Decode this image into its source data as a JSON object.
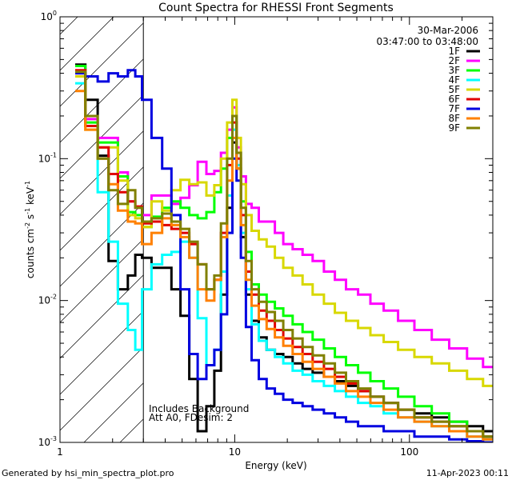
{
  "chart_data": {
    "type": "line",
    "title": "Count Spectra for RHESSI Front Segments",
    "xlabel": "Energy (keV)",
    "ylabel_parts": [
      "counts cm",
      "-2",
      " s",
      "-1",
      " keV",
      "-1"
    ],
    "xscale": "log",
    "yscale": "log",
    "xlim": [
      1.0,
      300.0
    ],
    "ylim": [
      0.001,
      1.0
    ],
    "x_ticks": [
      {
        "value": 1,
        "label": "1"
      },
      {
        "value": 10,
        "label": "10"
      },
      {
        "value": 100,
        "label": "100"
      }
    ],
    "y_ticks": [
      {
        "value": 0.001,
        "base": "10",
        "exp": "-3"
      },
      {
        "value": 0.01,
        "base": "10",
        "exp": "-2"
      },
      {
        "value": 0.1,
        "base": "10",
        "exp": "-1"
      },
      {
        "value": 1,
        "base": "10",
        "exp": "0"
      }
    ],
    "hatched_region_keV": [
      1.0,
      3.0
    ],
    "info": {
      "date": "30-Mar-2006",
      "time_range": "03:47:00 to 03:48:00"
    },
    "note_lines": [
      "Includes Background",
      "Att A0, FDesim: 2"
    ],
    "legend_location": "top-right",
    "series": [
      {
        "name": "1F",
        "color": "#000000",
        "x": [
          1.3,
          1.5,
          1.8,
          2.0,
          2.3,
          2.6,
          2.8,
          3.1,
          3.6,
          4.1,
          4.6,
          5.2,
          5.8,
          6.5,
          7.3,
          8.0,
          8.7,
          9.4,
          10.0,
          10.5,
          11.2,
          12.0,
          13.0,
          14.5,
          16.0,
          18.0,
          20.0,
          23.0,
          26.0,
          30.0,
          35.0,
          40.0,
          47.0,
          55.0,
          65.0,
          78.0,
          95.0,
          120.0,
          150.0,
          190.0,
          240.0,
          290.0
        ],
        "y": [
          0.46,
          0.26,
          0.105,
          0.019,
          0.012,
          0.015,
          0.021,
          0.02,
          0.017,
          0.017,
          0.012,
          0.0078,
          0.0028,
          0.0012,
          0.0018,
          0.0032,
          0.011,
          0.045,
          0.13,
          0.085,
          0.028,
          0.011,
          0.0072,
          0.0055,
          0.0045,
          0.0042,
          0.004,
          0.0036,
          0.0033,
          0.0031,
          0.0029,
          0.0027,
          0.0025,
          0.0023,
          0.0021,
          0.0019,
          0.0017,
          0.0016,
          0.0015,
          0.0014,
          0.0013,
          0.0012
        ]
      },
      {
        "name": "2F",
        "color": "#ff00ff",
        "x": [
          1.3,
          1.5,
          1.8,
          2.0,
          2.3,
          2.6,
          2.8,
          3.1,
          3.6,
          4.1,
          4.6,
          5.2,
          5.8,
          6.5,
          7.3,
          8.0,
          8.7,
          9.4,
          10.0,
          10.5,
          11.2,
          12.0,
          13.0,
          14.5,
          16.0,
          18.0,
          20.0,
          23.0,
          26.0,
          30.0,
          35.0,
          40.0,
          47.0,
          55.0,
          65.0,
          78.0,
          95.0,
          120.0,
          150.0,
          190.0,
          240.0,
          290.0
        ],
        "y": [
          0.4,
          0.19,
          0.14,
          0.14,
          0.08,
          0.05,
          0.045,
          0.04,
          0.055,
          0.055,
          0.048,
          0.053,
          0.065,
          0.095,
          0.078,
          0.082,
          0.11,
          0.16,
          0.23,
          0.12,
          0.075,
          0.048,
          0.045,
          0.036,
          0.036,
          0.03,
          0.025,
          0.023,
          0.021,
          0.019,
          0.016,
          0.014,
          0.012,
          0.011,
          0.0095,
          0.0085,
          0.0072,
          0.0062,
          0.0053,
          0.0046,
          0.0039,
          0.0034
        ]
      },
      {
        "name": "3F",
        "color": "#00ff00",
        "x": [
          1.3,
          1.5,
          1.8,
          2.0,
          2.3,
          2.6,
          2.8,
          3.1,
          3.6,
          4.1,
          4.6,
          5.2,
          5.8,
          6.5,
          7.3,
          8.0,
          8.7,
          9.4,
          10.0,
          10.5,
          11.2,
          12.0,
          13.0,
          14.5,
          16.0,
          18.0,
          20.0,
          23.0,
          26.0,
          30.0,
          35.0,
          40.0,
          47.0,
          55.0,
          65.0,
          78.0,
          95.0,
          120.0,
          150.0,
          190.0,
          240.0,
          290.0
        ],
        "y": [
          0.45,
          0.18,
          0.13,
          0.13,
          0.075,
          0.042,
          0.04,
          0.033,
          0.039,
          0.045,
          0.05,
          0.045,
          0.04,
          0.038,
          0.042,
          0.058,
          0.085,
          0.14,
          0.2,
          0.11,
          0.05,
          0.022,
          0.013,
          0.011,
          0.0098,
          0.0088,
          0.0078,
          0.0068,
          0.006,
          0.0053,
          0.0046,
          0.004,
          0.0035,
          0.0031,
          0.0027,
          0.0024,
          0.0021,
          0.0018,
          0.0016,
          0.0014,
          0.0012,
          0.0011
        ]
      },
      {
        "name": "4F",
        "color": "#00ffff",
        "x": [
          1.3,
          1.5,
          1.8,
          2.0,
          2.3,
          2.6,
          2.8,
          3.1,
          3.6,
          4.1,
          4.6,
          5.2,
          5.8,
          6.5,
          7.3,
          8.0,
          8.7,
          9.4,
          10.0,
          10.5,
          11.2,
          12.0,
          13.0,
          14.5,
          16.0,
          18.0,
          20.0,
          23.0,
          26.0,
          30.0,
          35.0,
          40.0,
          47.0,
          55.0,
          65.0,
          78.0,
          95.0,
          120.0,
          150.0,
          190.0,
          240.0,
          290.0
        ],
        "y": [
          0.34,
          0.17,
          0.058,
          0.026,
          0.0095,
          0.0062,
          0.0045,
          0.012,
          0.018,
          0.021,
          0.022,
          0.026,
          0.02,
          0.0075,
          0.0035,
          0.0045,
          0.016,
          0.055,
          0.16,
          0.09,
          0.03,
          0.012,
          0.0068,
          0.0052,
          0.0045,
          0.004,
          0.0036,
          0.0032,
          0.003,
          0.0027,
          0.0025,
          0.0023,
          0.0021,
          0.0019,
          0.0018,
          0.0016,
          0.0015,
          0.0014,
          0.0013,
          0.0012,
          0.0011,
          0.00105
        ]
      },
      {
        "name": "5F",
        "color": "#d8d800",
        "x": [
          1.3,
          1.5,
          1.8,
          2.0,
          2.3,
          2.6,
          2.8,
          3.1,
          3.6,
          4.1,
          4.6,
          5.2,
          5.8,
          6.5,
          7.3,
          8.0,
          8.7,
          9.4,
          10.0,
          10.5,
          11.2,
          12.0,
          13.0,
          14.5,
          16.0,
          18.0,
          20.0,
          23.0,
          26.0,
          30.0,
          35.0,
          40.0,
          47.0,
          55.0,
          65.0,
          78.0,
          95.0,
          120.0,
          150.0,
          190.0,
          240.0,
          290.0
        ],
        "y": [
          0.38,
          0.16,
          0.12,
          0.12,
          0.07,
          0.04,
          0.038,
          0.033,
          0.05,
          0.043,
          0.06,
          0.071,
          0.066,
          0.068,
          0.055,
          0.065,
          0.1,
          0.18,
          0.26,
          0.14,
          0.066,
          0.04,
          0.031,
          0.027,
          0.024,
          0.02,
          0.017,
          0.015,
          0.013,
          0.011,
          0.0095,
          0.0082,
          0.0072,
          0.0064,
          0.0057,
          0.0051,
          0.0045,
          0.004,
          0.0036,
          0.0032,
          0.0028,
          0.0025
        ]
      },
      {
        "name": "6F",
        "color": "#e00000",
        "x": [
          1.3,
          1.5,
          1.8,
          2.0,
          2.3,
          2.6,
          2.8,
          3.1,
          3.6,
          4.1,
          4.6,
          5.2,
          5.8,
          6.5,
          7.3,
          8.0,
          8.7,
          9.4,
          10.0,
          10.5,
          11.2,
          12.0,
          13.0,
          14.5,
          16.0,
          18.0,
          20.0,
          23.0,
          26.0,
          30.0,
          35.0,
          40.0,
          47.0,
          55.0,
          65.0,
          78.0,
          95.0,
          120.0,
          150.0,
          190.0,
          240.0,
          290.0
        ],
        "y": [
          0.42,
          0.17,
          0.12,
          0.078,
          0.058,
          0.05,
          0.046,
          0.035,
          0.036,
          0.034,
          0.032,
          0.03,
          0.025,
          0.018,
          0.012,
          0.014,
          0.03,
          0.09,
          0.18,
          0.1,
          0.04,
          0.016,
          0.011,
          0.0085,
          0.0072,
          0.0062,
          0.0054,
          0.0047,
          0.0042,
          0.0037,
          0.0033,
          0.0029,
          0.0026,
          0.0023,
          0.0021,
          0.0019,
          0.0017,
          0.0015,
          0.0014,
          0.0013,
          0.0012,
          0.0011
        ]
      },
      {
        "name": "7F",
        "color": "#0000e0",
        "x": [
          1.3,
          1.5,
          1.8,
          2.0,
          2.3,
          2.6,
          2.8,
          3.1,
          3.6,
          4.1,
          4.6,
          5.2,
          5.8,
          6.5,
          7.3,
          8.0,
          8.7,
          9.4,
          10.0,
          10.5,
          11.2,
          12.0,
          13.0,
          14.5,
          16.0,
          18.0,
          20.0,
          23.0,
          26.0,
          30.0,
          35.0,
          40.0,
          47.0,
          55.0,
          65.0,
          78.0,
          95.0,
          120.0,
          150.0,
          190.0,
          240.0,
          290.0
        ],
        "y": [
          0.4,
          0.38,
          0.35,
          0.4,
          0.38,
          0.42,
          0.38,
          0.26,
          0.14,
          0.085,
          0.04,
          0.012,
          0.0042,
          0.0028,
          0.0035,
          0.0045,
          0.008,
          0.03,
          0.1,
          0.07,
          0.02,
          0.0065,
          0.0038,
          0.0028,
          0.0024,
          0.0022,
          0.002,
          0.0019,
          0.0018,
          0.0017,
          0.0016,
          0.0015,
          0.0014,
          0.0013,
          0.0013,
          0.0012,
          0.0012,
          0.0011,
          0.0011,
          0.00105,
          0.00102,
          0.001
        ]
      },
      {
        "name": "8F",
        "color": "#ff8000",
        "x": [
          1.3,
          1.5,
          1.8,
          2.0,
          2.3,
          2.6,
          2.8,
          3.1,
          3.6,
          4.1,
          4.6,
          5.2,
          5.8,
          6.5,
          7.3,
          8.0,
          8.7,
          9.4,
          10.0,
          10.5,
          11.2,
          12.0,
          13.0,
          14.5,
          16.0,
          18.0,
          20.0,
          23.0,
          26.0,
          30.0,
          35.0,
          40.0,
          47.0,
          55.0,
          65.0,
          78.0,
          95.0,
          120.0,
          150.0,
          190.0,
          240.0,
          290.0
        ],
        "y": [
          0.3,
          0.16,
          0.1,
          0.066,
          0.043,
          0.036,
          0.035,
          0.025,
          0.03,
          0.038,
          0.034,
          0.028,
          0.02,
          0.012,
          0.01,
          0.014,
          0.028,
          0.07,
          0.14,
          0.085,
          0.034,
          0.014,
          0.0092,
          0.0074,
          0.0063,
          0.0055,
          0.0048,
          0.0042,
          0.0037,
          0.0033,
          0.0029,
          0.0026,
          0.0023,
          0.0021,
          0.0019,
          0.0017,
          0.0015,
          0.0014,
          0.0013,
          0.0012,
          0.0011,
          0.00105
        ]
      },
      {
        "name": "9F",
        "color": "#808000",
        "x": [
          1.3,
          1.5,
          1.8,
          2.0,
          2.3,
          2.6,
          2.8,
          3.1,
          3.6,
          4.1,
          4.6,
          5.2,
          5.8,
          6.5,
          7.3,
          8.0,
          8.7,
          9.4,
          10.0,
          10.5,
          11.2,
          12.0,
          13.0,
          14.5,
          16.0,
          18.0,
          20.0,
          23.0,
          26.0,
          30.0,
          35.0,
          40.0,
          47.0,
          55.0,
          65.0,
          78.0,
          95.0,
          120.0,
          150.0,
          190.0,
          240.0,
          290.0
        ],
        "y": [
          0.41,
          0.2,
          0.1,
          0.06,
          0.048,
          0.06,
          0.045,
          0.036,
          0.038,
          0.041,
          0.036,
          0.032,
          0.026,
          0.018,
          0.012,
          0.015,
          0.035,
          0.1,
          0.2,
          0.11,
          0.045,
          0.019,
          0.012,
          0.0098,
          0.0083,
          0.0072,
          0.0062,
          0.0054,
          0.0047,
          0.0041,
          0.0036,
          0.0031,
          0.0027,
          0.0024,
          0.0021,
          0.0019,
          0.0017,
          0.0015,
          0.0014,
          0.0013,
          0.0012,
          0.0011
        ]
      }
    ]
  },
  "footer": {
    "left": "Generated by hsi_min_spectra_plot.pro",
    "right": "11-Apr-2023 00:11"
  }
}
